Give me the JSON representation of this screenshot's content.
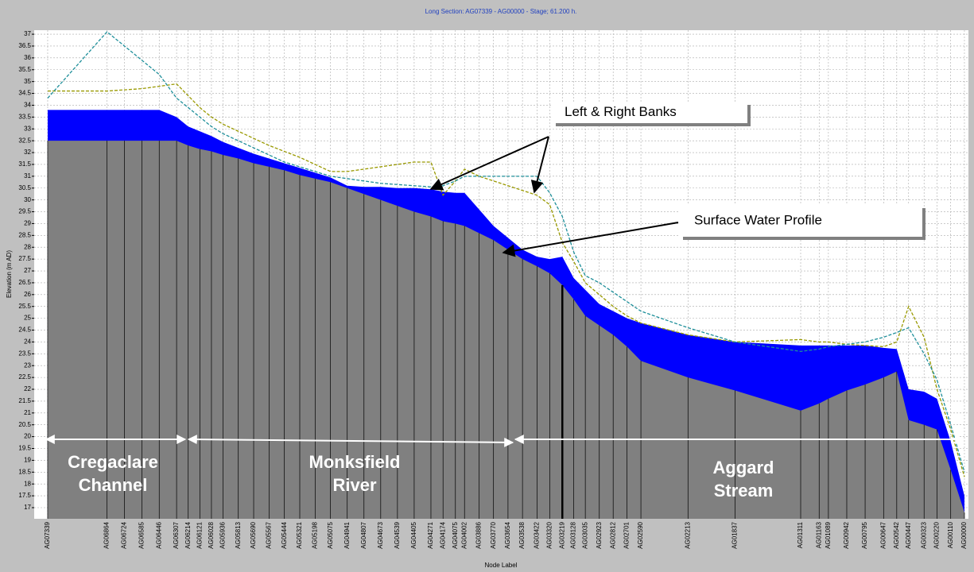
{
  "chart_data": {
    "type": "area",
    "title": "Long Section: AG07339 - AG00000 - Stage; 61.200 h.",
    "x_label": "Node Label",
    "y_label": "Elevation (m AD)",
    "categories": [
      "AG07339",
      "AG06864",
      "AG06724",
      "AG06585",
      "AG06446",
      "AG06307",
      "AG06214",
      "AG06121",
      "AG06028",
      "AG05936",
      "AG05813",
      "AG05690",
      "AG05567",
      "AG05444",
      "AG05321",
      "AG05198",
      "AG05075",
      "AG04941",
      "AG04807",
      "AG04673",
      "AG04539",
      "AG04405",
      "AG04271",
      "AG04174",
      "AG04075",
      "AG04002",
      "AG03886",
      "AG03770",
      "AG03654",
      "AG03538",
      "AG03422",
      "AG03320",
      "AG03219",
      "AG03128",
      "AG03035",
      "AG02923",
      "AG02812",
      "AG02701",
      "AG02590",
      "AG02213",
      "AG01837",
      "AG01311",
      "AG01163",
      "AG01089",
      "AG00942",
      "AG00795",
      "AG00647",
      "AG00542",
      "AG00447",
      "AG00323",
      "AG00220",
      "AG00110",
      "AG00000"
    ],
    "x": [
      0,
      475,
      615,
      754,
      893,
      1032,
      1125,
      1218,
      1311,
      1403,
      1526,
      1649,
      1772,
      1895,
      2018,
      2141,
      2264,
      2398,
      2532,
      2666,
      2800,
      2934,
      3068,
      3165,
      3264,
      3337,
      3453,
      3569,
      3685,
      3801,
      3917,
      4019,
      4120,
      4211,
      4304,
      4416,
      4527,
      4638,
      4749,
      5126,
      5502,
      6028,
      6176,
      6250,
      6397,
      6544,
      6692,
      6797,
      6892,
      7016,
      7119,
      7229,
      7339
    ],
    "xlim": [
      -108,
      7371
    ],
    "ylim": [
      16.53,
      37.17
    ],
    "yticks": [
      17,
      17.5,
      18,
      18.5,
      19,
      19.5,
      20,
      20.5,
      21,
      21.5,
      22,
      22.5,
      23,
      23.5,
      24,
      24.5,
      25,
      25.5,
      26,
      26.5,
      27,
      27.5,
      28,
      28.5,
      29,
      29.5,
      30,
      30.5,
      31,
      31.5,
      32,
      32.5,
      33,
      33.5,
      34,
      34.5,
      35,
      35.5,
      36,
      36.5,
      37
    ],
    "grid": true,
    "series": [
      {
        "color": "#808080",
        "values": [
          32.5,
          32.5,
          32.5,
          32.5,
          32.5,
          32.5,
          32.3,
          32.15,
          32.05,
          31.9,
          31.75,
          31.55,
          31.4,
          31.25,
          31.05,
          30.9,
          30.75,
          30.5,
          30.25,
          30,
          29.75,
          29.5,
          29.3,
          29.1,
          29,
          28.9,
          28.6,
          28.3,
          27.9,
          27.5,
          27.2,
          26.9,
          26.4,
          25.8,
          25.1,
          24.7,
          24.3,
          23.8,
          23.2,
          22.5,
          21.95,
          21.1,
          21.4,
          21.6,
          21.95,
          22.2,
          22.5,
          22.75,
          20.7,
          20.5,
          20.3,
          18.6,
          16.8
        ]
      },
      {
        "color": "#0000ff",
        "values": [
          33.8,
          33.8,
          33.8,
          33.8,
          33.8,
          33.5,
          33.1,
          32.9,
          32.7,
          32.45,
          32.2,
          31.95,
          31.75,
          31.55,
          31.35,
          31.15,
          30.95,
          30.6,
          30.55,
          30.55,
          30.5,
          30.5,
          30.45,
          30.35,
          30.3,
          30.3,
          29.6,
          28.9,
          28.4,
          27.9,
          27.6,
          27.5,
          27.6,
          26.7,
          26.2,
          25.6,
          25.3,
          25,
          24.8,
          24.3,
          24,
          23.85,
          23.85,
          23.85,
          23.85,
          23.85,
          23.75,
          23.7,
          22,
          21.9,
          21.6,
          19.8,
          17.5
        ]
      },
      {
        "color": "#999900",
        "values": [
          34.6,
          34.6,
          34.65,
          34.7,
          34.8,
          34.9,
          34.4,
          33.9,
          33.5,
          33.2,
          32.9,
          32.6,
          32.3,
          32.05,
          31.8,
          31.5,
          31.2,
          31.2,
          31.3,
          31.4,
          31.5,
          31.6,
          31.6,
          30.2,
          30.8,
          31.3,
          31,
          30.8,
          30.6,
          30.4,
          30.2,
          29.8,
          28.2,
          27.4,
          26.5,
          26,
          25.5,
          25.1,
          24.8,
          24.3,
          24,
          24.1,
          24,
          24,
          23.9,
          23.85,
          23.8,
          24,
          25.5,
          24.2,
          22,
          20.3,
          18.3
        ]
      },
      {
        "color": "#1e8f9a",
        "values": [
          34.3,
          37.1,
          36.5,
          35.9,
          35.3,
          34.3,
          33.9,
          33.5,
          33.1,
          32.8,
          32.5,
          32.2,
          31.9,
          31.6,
          31.4,
          31.2,
          31,
          30.9,
          30.8,
          30.7,
          30.65,
          30.6,
          30.55,
          30.6,
          30.8,
          31,
          31,
          31,
          31,
          31,
          31,
          30.3,
          29.3,
          27.8,
          26.8,
          26.5,
          26.1,
          25.7,
          25.3,
          24.6,
          24,
          23.6,
          23.7,
          23.8,
          23.9,
          24,
          24.2,
          24.4,
          24.6,
          23.5,
          22.4,
          20.5,
          18.5
        ]
      }
    ],
    "annotations": [
      {
        "text": "Left & Right Banks"
      },
      {
        "text": "Surface Water Profile"
      }
    ],
    "reaches": [
      {
        "lines": [
          "Cregaclare",
          "Channel"
        ]
      },
      {
        "lines": [
          "Monksfield",
          "River"
        ]
      },
      {
        "lines": [
          "Aggard",
          "Stream"
        ]
      }
    ]
  }
}
